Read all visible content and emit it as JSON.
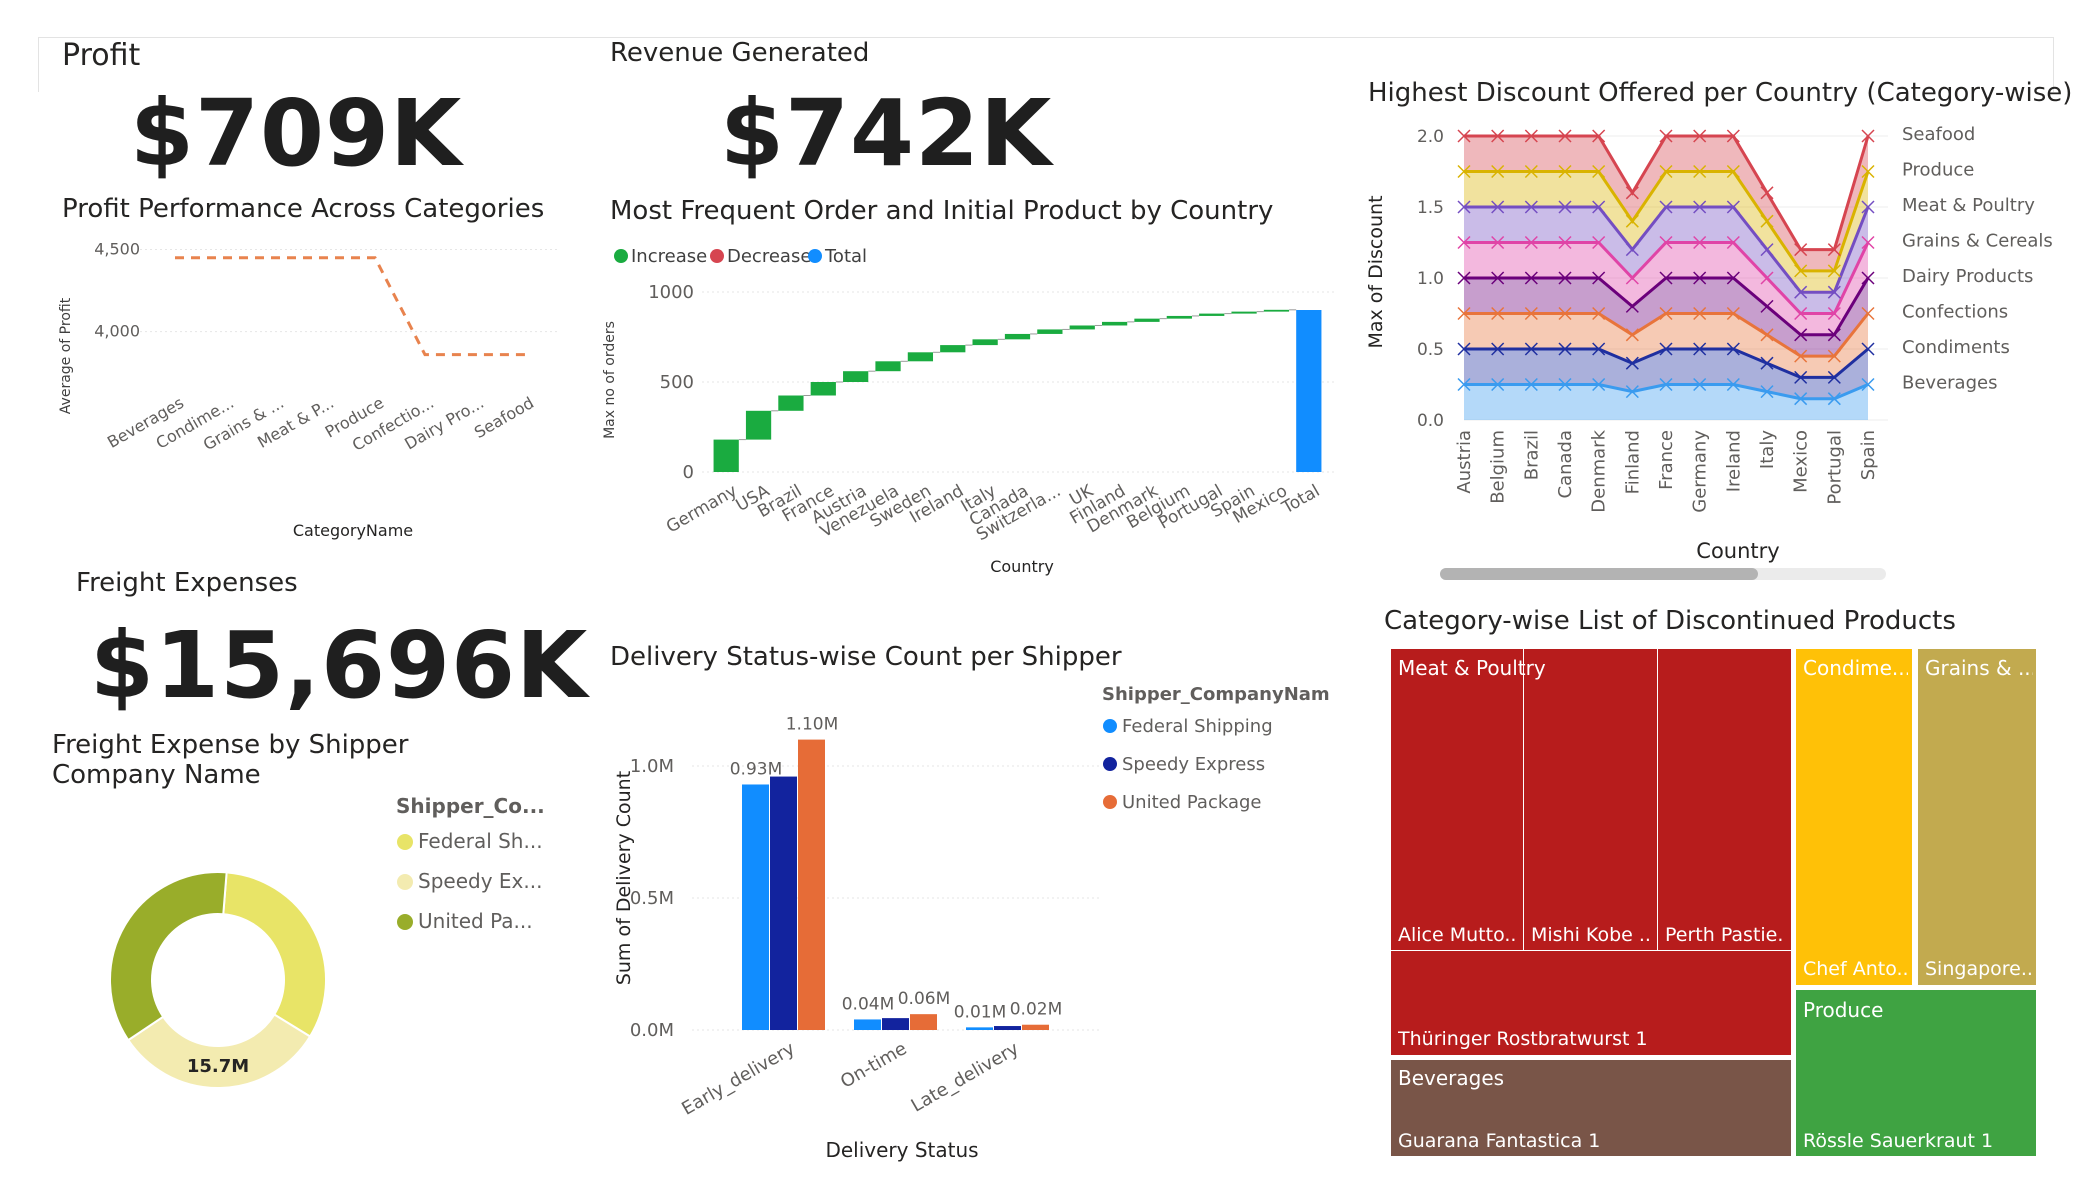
{
  "kpis": {
    "profit": {
      "label": "Profit",
      "value": "$709K"
    },
    "revenue": {
      "label": "Revenue Generated",
      "value": "$742K"
    },
    "freight": {
      "label": "Freight Expenses",
      "value": "$15,696K"
    }
  },
  "chart_data": [
    {
      "id": "profit_by_category",
      "type": "line",
      "title": "Profit Performance Across Categories",
      "xlabel": "CategoryName",
      "ylabel": "Average of Profit",
      "categories": [
        "Beverages",
        "Condime...",
        "Grains & ...",
        "Meat & P...",
        "Produce",
        "Confectio...",
        "Dairy Pro...",
        "Seafood"
      ],
      "series": [
        {
          "values": [
            4450,
            4450,
            4450,
            4450,
            4450,
            3860,
            3860,
            3860
          ]
        }
      ],
      "yticks": [
        "4,000",
        "4,500"
      ],
      "ylim": [
        3730,
        4570
      ],
      "style": "dashed",
      "color": "#E8834E"
    },
    {
      "id": "orders_waterfall",
      "type": "bar",
      "subtype": "waterfall",
      "title": "Most Frequent Order and Initial Product by Country",
      "xlabel": "Country",
      "ylabel": "Max no of orders",
      "legend": [
        "Increase",
        "Decrease",
        "Total"
      ],
      "legend_colors": [
        "#1AAB40",
        "#D64550",
        "#118DFF"
      ],
      "categories": [
        "Germany",
        "USA",
        "Brazil",
        "France",
        "Austria",
        "Venezuela",
        "Sweden",
        "Ireland",
        "Italy",
        "Canada",
        "Switzerla...",
        "UK",
        "Finland",
        "Denmark",
        "Belgium",
        "Portugal",
        "Spain",
        "Mexico",
        "Total"
      ],
      "increments": [
        180,
        160,
        85,
        75,
        60,
        55,
        50,
        40,
        32,
        30,
        25,
        22,
        20,
        18,
        15,
        13,
        11,
        10
      ],
      "total": 900,
      "yticks": [
        "0",
        "500",
        "1000"
      ],
      "ylim": [
        0,
        1000
      ]
    },
    {
      "id": "discount_by_country",
      "type": "area",
      "stacked": true,
      "title": "Highest Discount Offered per Country (Category-wise)",
      "xlabel": "Country",
      "ylabel": "Max of Discount",
      "categories": [
        "Austria",
        "Belgium",
        "Brazil",
        "Canada",
        "Denmark",
        "Finland",
        "France",
        "Germany",
        "Ireland",
        "Italy",
        "Mexico",
        "Portugal",
        "Spain"
      ],
      "series": [
        {
          "name": "Beverages",
          "color": "#3A9BEF",
          "values": [
            0.25,
            0.25,
            0.25,
            0.25,
            0.25,
            0.2,
            0.25,
            0.25,
            0.25,
            0.2,
            0.15,
            0.15,
            0.25
          ]
        },
        {
          "name": "Condiments",
          "color": "#1F2FA0",
          "values": [
            0.25,
            0.25,
            0.25,
            0.25,
            0.25,
            0.2,
            0.25,
            0.25,
            0.25,
            0.2,
            0.15,
            0.15,
            0.25
          ]
        },
        {
          "name": "Confections",
          "color": "#E8743B",
          "values": [
            0.25,
            0.25,
            0.25,
            0.25,
            0.25,
            0.2,
            0.25,
            0.25,
            0.25,
            0.2,
            0.15,
            0.15,
            0.25
          ]
        },
        {
          "name": "Dairy Products",
          "color": "#6B007B",
          "values": [
            0.25,
            0.25,
            0.25,
            0.25,
            0.25,
            0.2,
            0.25,
            0.25,
            0.25,
            0.2,
            0.15,
            0.15,
            0.25
          ]
        },
        {
          "name": "Grains & Cereals",
          "color": "#E044A7",
          "values": [
            0.25,
            0.25,
            0.25,
            0.25,
            0.25,
            0.2,
            0.25,
            0.25,
            0.25,
            0.2,
            0.15,
            0.15,
            0.25
          ]
        },
        {
          "name": "Meat & Poultry",
          "color": "#744EC2",
          "values": [
            0.25,
            0.25,
            0.25,
            0.25,
            0.25,
            0.2,
            0.25,
            0.25,
            0.25,
            0.2,
            0.15,
            0.15,
            0.25
          ]
        },
        {
          "name": "Produce",
          "color": "#D9B300",
          "values": [
            0.25,
            0.25,
            0.25,
            0.25,
            0.25,
            0.2,
            0.25,
            0.25,
            0.25,
            0.2,
            0.15,
            0.15,
            0.25
          ]
        },
        {
          "name": "Seafood",
          "color": "#D64550",
          "values": [
            0.25,
            0.25,
            0.25,
            0.25,
            0.25,
            0.2,
            0.25,
            0.25,
            0.25,
            0.2,
            0.15,
            0.15,
            0.25
          ]
        }
      ],
      "legend_order": [
        "Seafood",
        "Produce",
        "Meat & Poultry",
        "Grains & Cereals",
        "Dairy Products",
        "Confections",
        "Condiments",
        "Beverages"
      ],
      "yticks": [
        "0.0",
        "0.5",
        "1.0",
        "1.5",
        "2.0"
      ],
      "ylim": [
        0,
        2.0
      ],
      "legend_position": "right"
    },
    {
      "id": "freight_by_shipper",
      "type": "pie",
      "donut": true,
      "title": "Freight Expense by Shipper Company Name",
      "legend_title": "Shipper_Co...",
      "legend": [
        "Federal Sh...",
        "Speedy Ex...",
        "United Pa..."
      ],
      "colors": [
        "#E8E467",
        "#F3EBB0",
        "#99AD2A"
      ],
      "values": [
        5.1,
        5.0,
        5.6
      ],
      "center_label": "15.7M"
    },
    {
      "id": "delivery_status_by_shipper",
      "type": "bar",
      "title": "Delivery Status-wise Count per Shipper",
      "xlabel": "Delivery Status",
      "ylabel": "Sum of Delivery Count",
      "legend_title": "Shipper_CompanyName",
      "categories": [
        "Early_delivery",
        "On-time",
        "Late_delivery"
      ],
      "series": [
        {
          "name": "Federal Shipping",
          "color": "#118DFF",
          "values": [
            0.93,
            0.04,
            0.01
          ]
        },
        {
          "name": "Speedy Express",
          "color": "#12239E",
          "values": [
            0.96,
            0.045,
            0.015
          ]
        },
        {
          "name": "United Package",
          "color": "#E66C37",
          "values": [
            1.1,
            0.06,
            0.02
          ]
        }
      ],
      "data_labels": [
        [
          "0.93M",
          "0.04M",
          "0.01M"
        ],
        [
          "",
          "",
          ""
        ],
        [
          "1.10M",
          "0.06M",
          "0.02M"
        ]
      ],
      "yticks": [
        "0.0M",
        "0.5M",
        "1.0M"
      ],
      "ylim": [
        0,
        1.25
      ]
    }
  ],
  "treemap": {
    "title": "Category-wise List of Discontinued Products",
    "groups": {
      "meat": {
        "label": "Meat & Poultry",
        "items": [
          "Alice Mutto...",
          "Mishi Kobe ...",
          "Perth Pastie...",
          "Thüringer Rostbratwurst 1"
        ]
      },
      "condiments": {
        "label": "Condime...",
        "item": "Chef Anto..."
      },
      "grains": {
        "label": "Grains & ...",
        "item": "Singapore..."
      },
      "produce": {
        "label": "Produce",
        "item": "Rössle Sauerkraut 1"
      },
      "beverages": {
        "label": "Beverages",
        "item": "Guarana Fantastica 1"
      }
    },
    "colors": {
      "meat": "#B71C1C",
      "condiments": "#FFC107",
      "grains": "#C2AA4F",
      "produce": "#3FA342",
      "beverages": "#795548"
    }
  }
}
